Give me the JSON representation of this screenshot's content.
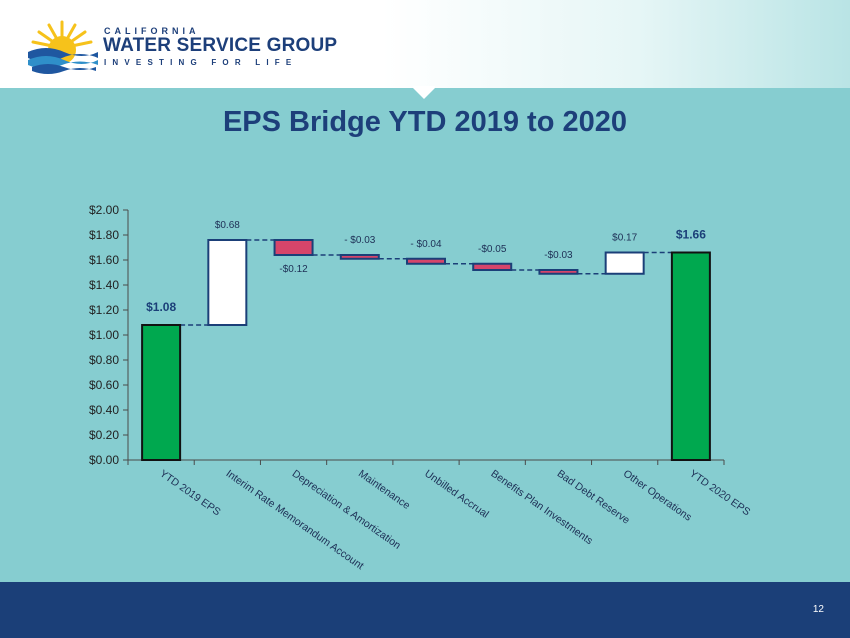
{
  "brand": {
    "top": "CALIFORNIA",
    "main": "WATER SERVICE GROUP",
    "tagline": "INVESTING FOR LIFE"
  },
  "colors": {
    "background": "#86cdd0",
    "navy": "#1b3f78",
    "total_bar": "#00a84f",
    "decrease_bar": "#d6456a",
    "increase_bar": "#ffffff",
    "logo_sun": "#f6c21b",
    "logo_wave": "#1f57a0"
  },
  "slide": {
    "title": "EPS Bridge YTD 2019 to 2020",
    "page_number": "12"
  },
  "chart_data": {
    "type": "waterfall",
    "title": "",
    "xlabel": "",
    "ylabel": "",
    "ylim": [
      0,
      2.0
    ],
    "yticks": [
      0,
      0.2,
      0.4,
      0.6,
      0.8,
      1.0,
      1.2,
      1.4,
      1.6,
      1.8,
      2.0
    ],
    "ytick_labels": [
      "$0.00",
      "$0.20",
      "$0.40",
      "$0.60",
      "$0.80",
      "$1.00",
      "$1.20",
      "$1.40",
      "$1.60",
      "$1.80",
      "$2.00"
    ],
    "grid": false,
    "categories": [
      "YTD 2019 EPS",
      "Interim Rate Memorandum Account",
      "Depreciation & Amortization",
      "Maintenance",
      "Unbilled Accrual",
      "Benefits Plan Investments",
      "Bad Debt Reserve",
      "Other Operations",
      "YTD 2020 EPS"
    ],
    "values": [
      1.08,
      0.68,
      -0.12,
      -0.03,
      -0.04,
      -0.05,
      -0.03,
      0.17,
      1.66
    ],
    "kinds": [
      "total",
      "increase",
      "decrease",
      "decrease",
      "decrease",
      "decrease",
      "decrease",
      "increase",
      "total"
    ],
    "data_labels": [
      "$1.08",
      "$0.68",
      "-$0.12",
      "- $0.03",
      "- $0.04",
      "-$0.05",
      "-$0.03",
      "$0.17",
      "$1.66"
    ],
    "label_positions": [
      "above",
      "above",
      "below",
      "above",
      "above",
      "above",
      "above",
      "above",
      "above"
    ]
  }
}
